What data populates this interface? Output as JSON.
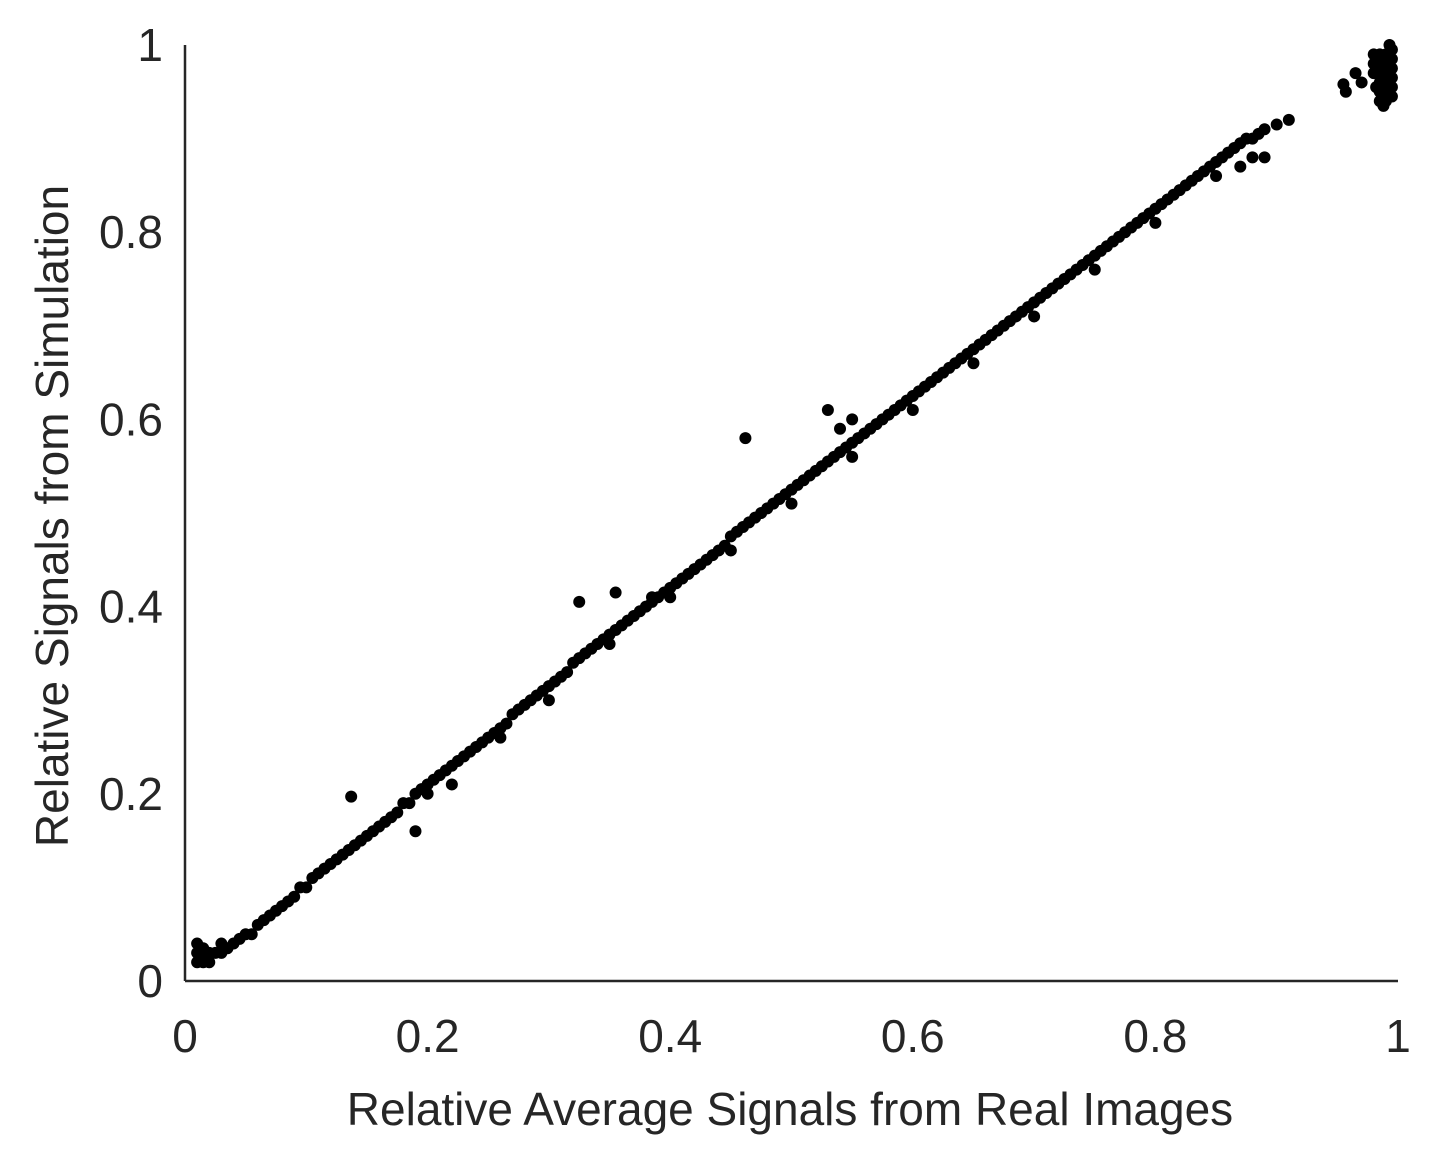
{
  "chart_data": {
    "type": "scatter",
    "title": "",
    "xlabel": "Relative Average Signals from Real Images",
    "ylabel": "Relative Signals from Simulation",
    "xlim": [
      0,
      1
    ],
    "ylim": [
      0,
      1
    ],
    "x_ticks": [
      "0",
      "0.2",
      "0.4",
      "0.6",
      "0.8",
      "1"
    ],
    "y_ticks": [
      "0",
      "0.2",
      "0.4",
      "0.6",
      "0.8",
      "1"
    ],
    "grid": false,
    "legend": "none",
    "marker_color": "#000000",
    "points": [
      [
        0.01,
        0.02
      ],
      [
        0.01,
        0.03
      ],
      [
        0.01,
        0.04
      ],
      [
        0.012,
        0.025
      ],
      [
        0.015,
        0.02
      ],
      [
        0.015,
        0.035
      ],
      [
        0.02,
        0.02
      ],
      [
        0.02,
        0.03
      ],
      [
        0.025,
        0.03
      ],
      [
        0.03,
        0.03
      ],
      [
        0.03,
        0.04
      ],
      [
        0.035,
        0.035
      ],
      [
        0.04,
        0.04
      ],
      [
        0.045,
        0.045
      ],
      [
        0.05,
        0.05
      ],
      [
        0.055,
        0.05
      ],
      [
        0.06,
        0.06
      ],
      [
        0.065,
        0.065
      ],
      [
        0.07,
        0.07
      ],
      [
        0.075,
        0.075
      ],
      [
        0.08,
        0.08
      ],
      [
        0.085,
        0.085
      ],
      [
        0.09,
        0.09
      ],
      [
        0.095,
        0.1
      ],
      [
        0.1,
        0.1
      ],
      [
        0.105,
        0.11
      ],
      [
        0.11,
        0.115
      ],
      [
        0.115,
        0.12
      ],
      [
        0.12,
        0.125
      ],
      [
        0.125,
        0.13
      ],
      [
        0.13,
        0.135
      ],
      [
        0.135,
        0.14
      ],
      [
        0.14,
        0.145
      ],
      [
        0.145,
        0.15
      ],
      [
        0.15,
        0.155
      ],
      [
        0.155,
        0.16
      ],
      [
        0.16,
        0.165
      ],
      [
        0.165,
        0.17
      ],
      [
        0.17,
        0.175
      ],
      [
        0.175,
        0.18
      ],
      [
        0.18,
        0.19
      ],
      [
        0.185,
        0.19
      ],
      [
        0.19,
        0.2
      ],
      [
        0.195,
        0.205
      ],
      [
        0.2,
        0.21
      ],
      [
        0.205,
        0.215
      ],
      [
        0.21,
        0.22
      ],
      [
        0.215,
        0.225
      ],
      [
        0.22,
        0.23
      ],
      [
        0.225,
        0.235
      ],
      [
        0.23,
        0.24
      ],
      [
        0.235,
        0.245
      ],
      [
        0.24,
        0.25
      ],
      [
        0.245,
        0.255
      ],
      [
        0.25,
        0.26
      ],
      [
        0.255,
        0.265
      ],
      [
        0.26,
        0.27
      ],
      [
        0.265,
        0.275
      ],
      [
        0.27,
        0.285
      ],
      [
        0.275,
        0.29
      ],
      [
        0.28,
        0.295
      ],
      [
        0.285,
        0.3
      ],
      [
        0.29,
        0.305
      ],
      [
        0.295,
        0.31
      ],
      [
        0.3,
        0.315
      ],
      [
        0.305,
        0.32
      ],
      [
        0.31,
        0.325
      ],
      [
        0.315,
        0.33
      ],
      [
        0.32,
        0.34
      ],
      [
        0.325,
        0.345
      ],
      [
        0.33,
        0.35
      ],
      [
        0.335,
        0.355
      ],
      [
        0.34,
        0.36
      ],
      [
        0.345,
        0.365
      ],
      [
        0.35,
        0.37
      ],
      [
        0.355,
        0.375
      ],
      [
        0.36,
        0.38
      ],
      [
        0.365,
        0.385
      ],
      [
        0.37,
        0.39
      ],
      [
        0.375,
        0.395
      ],
      [
        0.38,
        0.4
      ],
      [
        0.385,
        0.405
      ],
      [
        0.39,
        0.41
      ],
      [
        0.395,
        0.415
      ],
      [
        0.4,
        0.42
      ],
      [
        0.405,
        0.425
      ],
      [
        0.41,
        0.43
      ],
      [
        0.415,
        0.435
      ],
      [
        0.42,
        0.44
      ],
      [
        0.425,
        0.445
      ],
      [
        0.43,
        0.45
      ],
      [
        0.435,
        0.455
      ],
      [
        0.44,
        0.46
      ],
      [
        0.445,
        0.465
      ],
      [
        0.45,
        0.475
      ],
      [
        0.455,
        0.48
      ],
      [
        0.46,
        0.485
      ],
      [
        0.465,
        0.49
      ],
      [
        0.47,
        0.495
      ],
      [
        0.475,
        0.5
      ],
      [
        0.48,
        0.505
      ],
      [
        0.485,
        0.51
      ],
      [
        0.49,
        0.515
      ],
      [
        0.495,
        0.52
      ],
      [
        0.5,
        0.525
      ],
      [
        0.505,
        0.53
      ],
      [
        0.51,
        0.535
      ],
      [
        0.515,
        0.54
      ],
      [
        0.52,
        0.545
      ],
      [
        0.525,
        0.55
      ],
      [
        0.53,
        0.555
      ],
      [
        0.535,
        0.56
      ],
      [
        0.54,
        0.565
      ],
      [
        0.545,
        0.57
      ],
      [
        0.55,
        0.575
      ],
      [
        0.555,
        0.58
      ],
      [
        0.56,
        0.585
      ],
      [
        0.565,
        0.59
      ],
      [
        0.57,
        0.595
      ],
      [
        0.575,
        0.6
      ],
      [
        0.58,
        0.605
      ],
      [
        0.585,
        0.61
      ],
      [
        0.59,
        0.615
      ],
      [
        0.595,
        0.62
      ],
      [
        0.6,
        0.625
      ],
      [
        0.605,
        0.63
      ],
      [
        0.61,
        0.635
      ],
      [
        0.615,
        0.64
      ],
      [
        0.62,
        0.645
      ],
      [
        0.625,
        0.65
      ],
      [
        0.63,
        0.655
      ],
      [
        0.635,
        0.66
      ],
      [
        0.64,
        0.665
      ],
      [
        0.645,
        0.67
      ],
      [
        0.65,
        0.675
      ],
      [
        0.655,
        0.68
      ],
      [
        0.66,
        0.685
      ],
      [
        0.665,
        0.69
      ],
      [
        0.67,
        0.695
      ],
      [
        0.675,
        0.7
      ],
      [
        0.68,
        0.705
      ],
      [
        0.685,
        0.71
      ],
      [
        0.69,
        0.715
      ],
      [
        0.695,
        0.72
      ],
      [
        0.7,
        0.725
      ],
      [
        0.705,
        0.73
      ],
      [
        0.71,
        0.735
      ],
      [
        0.715,
        0.74
      ],
      [
        0.72,
        0.745
      ],
      [
        0.725,
        0.75
      ],
      [
        0.73,
        0.755
      ],
      [
        0.735,
        0.76
      ],
      [
        0.74,
        0.765
      ],
      [
        0.745,
        0.77
      ],
      [
        0.75,
        0.775
      ],
      [
        0.755,
        0.78
      ],
      [
        0.76,
        0.785
      ],
      [
        0.765,
        0.79
      ],
      [
        0.77,
        0.795
      ],
      [
        0.775,
        0.8
      ],
      [
        0.78,
        0.805
      ],
      [
        0.785,
        0.81
      ],
      [
        0.79,
        0.815
      ],
      [
        0.795,
        0.82
      ],
      [
        0.8,
        0.825
      ],
      [
        0.805,
        0.83
      ],
      [
        0.81,
        0.835
      ],
      [
        0.815,
        0.84
      ],
      [
        0.82,
        0.845
      ],
      [
        0.825,
        0.85
      ],
      [
        0.83,
        0.855
      ],
      [
        0.835,
        0.86
      ],
      [
        0.84,
        0.865
      ],
      [
        0.845,
        0.87
      ],
      [
        0.85,
        0.875
      ],
      [
        0.855,
        0.88
      ],
      [
        0.86,
        0.885
      ],
      [
        0.865,
        0.89
      ],
      [
        0.87,
        0.895
      ],
      [
        0.875,
        0.9
      ],
      [
        0.88,
        0.9
      ],
      [
        0.885,
        0.905
      ],
      [
        0.89,
        0.91
      ],
      [
        0.9,
        0.915
      ],
      [
        0.91,
        0.92
      ],
      [
        0.2,
        0.2
      ],
      [
        0.22,
        0.21
      ],
      [
        0.26,
        0.26
      ],
      [
        0.3,
        0.3
      ],
      [
        0.35,
        0.36
      ],
      [
        0.4,
        0.41
      ],
      [
        0.45,
        0.46
      ],
      [
        0.5,
        0.51
      ],
      [
        0.55,
        0.56
      ],
      [
        0.6,
        0.61
      ],
      [
        0.65,
        0.66
      ],
      [
        0.7,
        0.71
      ],
      [
        0.75,
        0.76
      ],
      [
        0.8,
        0.81
      ],
      [
        0.85,
        0.86
      ],
      [
        0.88,
        0.88
      ],
      [
        0.89,
        0.88
      ],
      [
        0.87,
        0.87
      ],
      [
        0.137,
        0.197
      ],
      [
        0.19,
        0.16
      ],
      [
        0.325,
        0.405
      ],
      [
        0.355,
        0.415
      ],
      [
        0.385,
        0.41
      ],
      [
        0.462,
        0.58
      ],
      [
        0.53,
        0.61
      ],
      [
        0.55,
        0.6
      ],
      [
        0.54,
        0.59
      ],
      [
        0.955,
        0.958
      ],
      [
        0.957,
        0.95
      ],
      [
        0.965,
        0.97
      ],
      [
        0.97,
        0.96
      ],
      [
        0.985,
        0.94
      ],
      [
        0.985,
        0.95
      ],
      [
        0.985,
        0.96
      ],
      [
        0.985,
        0.97
      ],
      [
        0.985,
        0.98
      ],
      [
        0.985,
        0.99
      ],
      [
        0.99,
        0.94
      ],
      [
        0.99,
        0.95
      ],
      [
        0.99,
        0.96
      ],
      [
        0.99,
        0.97
      ],
      [
        0.99,
        0.98
      ],
      [
        0.99,
        0.99
      ],
      [
        0.995,
        0.945
      ],
      [
        0.995,
        0.955
      ],
      [
        0.995,
        0.965
      ],
      [
        0.995,
        0.975
      ],
      [
        0.995,
        0.985
      ],
      [
        0.995,
        0.995
      ],
      [
        0.98,
        0.97
      ],
      [
        0.98,
        0.98
      ],
      [
        0.98,
        0.99
      ],
      [
        0.982,
        0.955
      ],
      [
        0.988,
        0.935
      ],
      [
        0.993,
        1.0
      ]
    ]
  }
}
